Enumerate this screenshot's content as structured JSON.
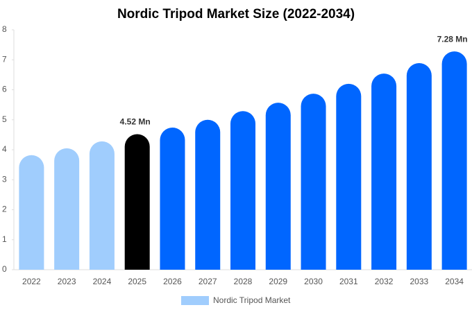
{
  "chart_data": {
    "type": "bar",
    "title": "Nordic Tripod Market Size (2022-2034)",
    "categories": [
      "2022",
      "2023",
      "2024",
      "2025",
      "2026",
      "2027",
      "2028",
      "2029",
      "2030",
      "2031",
      "2032",
      "2033",
      "2034"
    ],
    "series": [
      {
        "name": "Nordic Tripod Market",
        "color": "#a0cdfd",
        "bar_colors": [
          "#a0cdfd",
          "#a0cdfd",
          "#a0cdfd",
          "#000000",
          "#0066ff",
          "#0066ff",
          "#0066ff",
          "#0066ff",
          "#0066ff",
          "#0066ff",
          "#0066ff",
          "#0066ff",
          "#0066ff"
        ],
        "values": [
          3.82,
          4.05,
          4.28,
          4.52,
          4.74,
          5.0,
          5.29,
          5.57,
          5.87,
          6.2,
          6.54,
          6.89,
          7.28
        ],
        "value_labels": [
          null,
          null,
          null,
          "4.52 Mn",
          null,
          null,
          null,
          null,
          null,
          null,
          null,
          null,
          "7.28 Mn"
        ]
      }
    ],
    "ylim": [
      0,
      8
    ],
    "yticks": [
      0,
      1,
      2,
      3,
      4,
      5,
      6,
      7,
      8
    ],
    "grid": false
  }
}
